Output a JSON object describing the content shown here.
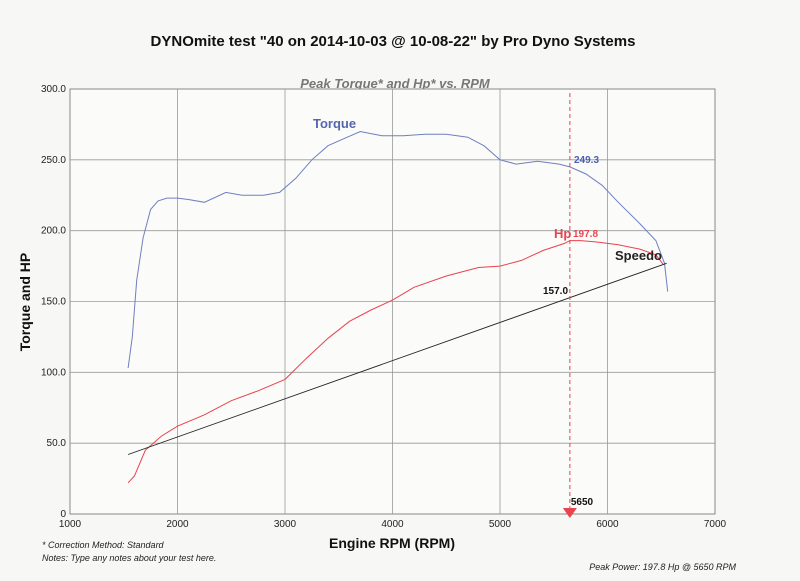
{
  "chart_data": {
    "type": "line",
    "title": "DYNOmite test \"40 on 2014-10-03 @ 10-08-22\" by Pro Dyno Systems",
    "subtitle": "Peak Torque* and Hp* vs. RPM",
    "xlabel": "Engine RPM (RPM)",
    "ylabel": "Torque and HP",
    "xlim": [
      1000,
      7000
    ],
    "ylim": [
      0,
      300
    ],
    "x_ticks": [
      "1000",
      "2000",
      "3000",
      "4000",
      "5000",
      "6000",
      "7000"
    ],
    "y_ticks": [
      "0",
      "50.0",
      "100.0",
      "150.0",
      "200.0",
      "250.0",
      "300.0"
    ],
    "grid": true,
    "series": [
      {
        "name": "Torque",
        "color": "#6f7fc0",
        "points": [
          [
            1540,
            103
          ],
          [
            1580,
            125
          ],
          [
            1620,
            165
          ],
          [
            1680,
            195
          ],
          [
            1750,
            215
          ],
          [
            1820,
            221
          ],
          [
            1900,
            223
          ],
          [
            2000,
            223
          ],
          [
            2100,
            222
          ],
          [
            2250,
            220
          ],
          [
            2450,
            227
          ],
          [
            2600,
            225
          ],
          [
            2800,
            225
          ],
          [
            2950,
            227
          ],
          [
            3100,
            237
          ],
          [
            3250,
            250
          ],
          [
            3400,
            260
          ],
          [
            3550,
            265
          ],
          [
            3700,
            270
          ],
          [
            3900,
            267
          ],
          [
            4100,
            267
          ],
          [
            4300,
            268
          ],
          [
            4500,
            268
          ],
          [
            4700,
            266
          ],
          [
            4850,
            260
          ],
          [
            5000,
            250
          ],
          [
            5150,
            247
          ],
          [
            5350,
            249
          ],
          [
            5550,
            247
          ],
          [
            5650,
            245
          ],
          [
            5800,
            240
          ],
          [
            5950,
            232
          ],
          [
            6100,
            220
          ],
          [
            6300,
            205
          ],
          [
            6450,
            193
          ],
          [
            6530,
            177
          ],
          [
            6560,
            157
          ]
        ]
      },
      {
        "name": "Hp",
        "color": "#e8434f",
        "points": [
          [
            1540,
            22
          ],
          [
            1600,
            27
          ],
          [
            1700,
            45
          ],
          [
            1850,
            55
          ],
          [
            2000,
            62
          ],
          [
            2250,
            70
          ],
          [
            2500,
            80
          ],
          [
            2750,
            87
          ],
          [
            3000,
            95
          ],
          [
            3200,
            110
          ],
          [
            3400,
            124
          ],
          [
            3600,
            136
          ],
          [
            3800,
            144
          ],
          [
            4000,
            151
          ],
          [
            4200,
            160
          ],
          [
            4500,
            168
          ],
          [
            4800,
            174
          ],
          [
            5000,
            175
          ],
          [
            5200,
            179
          ],
          [
            5400,
            186
          ],
          [
            5600,
            191
          ],
          [
            5650,
            193
          ],
          [
            5750,
            193
          ],
          [
            5900,
            192
          ],
          [
            6100,
            190
          ],
          [
            6300,
            187
          ],
          [
            6450,
            183
          ],
          [
            6520,
            176
          ]
        ]
      },
      {
        "name": "Speedo",
        "color": "#222222",
        "points": [
          [
            1540,
            42
          ],
          [
            6550,
            177
          ]
        ]
      }
    ],
    "annotations": [
      {
        "text": "249.3",
        "color": "#4a5fb0"
      },
      {
        "text": "197.8",
        "color": "#e8434f"
      },
      {
        "text": "157.0",
        "color": "#111111"
      }
    ],
    "marker": {
      "x": 5650,
      "label": "5650",
      "color": "#e8434f"
    }
  },
  "notes": {
    "correction": "* Correction Method: Standard",
    "notes_line": "Notes: Type any notes about your test here.",
    "peak_power": "Peak Power: 197.8 Hp @ 5650 RPM"
  }
}
